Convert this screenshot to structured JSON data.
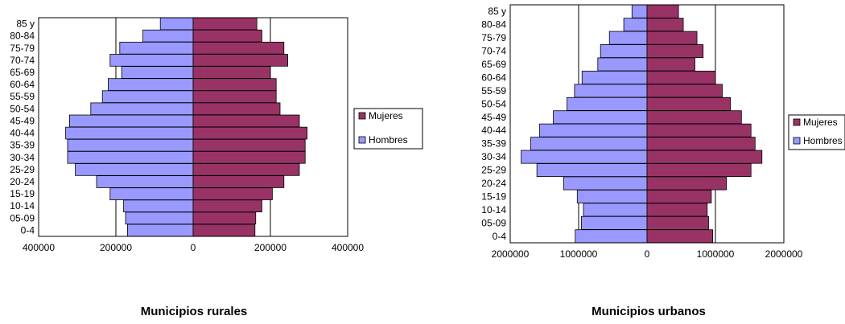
{
  "colors": {
    "mujeres": "#993366",
    "hombres": "#9999FF",
    "frame": "#000000"
  },
  "chart_data": [
    {
      "type": "bar",
      "orientation": "horizontal-pyramid",
      "title": "Municipios rurales",
      "categories": [
        "0-4",
        "05-09",
        "10-14",
        "15-19",
        "20-24",
        "25-29",
        "30-34",
        "35-39",
        "40-44",
        "45-49",
        "50-54",
        "55-59",
        "60-64",
        "65-69",
        "70-74",
        "75-79",
        "80-84",
        "85 y"
      ],
      "series": [
        {
          "name": "Hombres",
          "side": "left",
          "values": [
            170000,
            175000,
            180000,
            215000,
            250000,
            305000,
            325000,
            325000,
            330000,
            320000,
            265000,
            235000,
            220000,
            185000,
            215000,
            190000,
            130000,
            85000
          ]
        },
        {
          "name": "Mujeres",
          "side": "right",
          "values": [
            160000,
            162000,
            178000,
            205000,
            235000,
            275000,
            290000,
            290000,
            295000,
            275000,
            225000,
            215000,
            215000,
            200000,
            245000,
            235000,
            178000,
            165000
          ]
        }
      ],
      "xlim": [
        -400000,
        400000
      ],
      "xticks": [
        "400000",
        "200000",
        "0",
        "200000",
        "400000"
      ],
      "gridlines": [
        -200000,
        0,
        200000
      ],
      "legend": [
        "Mujeres",
        "Hombres"
      ],
      "legend_position": "right"
    },
    {
      "type": "bar",
      "orientation": "horizontal-pyramid",
      "title": "Municipios urbanos",
      "categories": [
        "0-4",
        "05-09",
        "10-14",
        "15-19",
        "20-24",
        "25-29",
        "30-34",
        "35-39",
        "40-44",
        "45-49",
        "50-54",
        "55-59",
        "60-64",
        "65-69",
        "70-74",
        "75-79",
        "80-84",
        "85 y"
      ],
      "series": [
        {
          "name": "Hombres",
          "side": "left",
          "values": [
            1050000,
            960000,
            930000,
            1020000,
            1220000,
            1610000,
            1840000,
            1700000,
            1570000,
            1370000,
            1170000,
            1060000,
            950000,
            720000,
            680000,
            550000,
            340000,
            220000
          ]
        },
        {
          "name": "Mujeres",
          "side": "right",
          "values": [
            960000,
            900000,
            880000,
            940000,
            1160000,
            1520000,
            1680000,
            1580000,
            1520000,
            1380000,
            1220000,
            1100000,
            1000000,
            700000,
            820000,
            730000,
            530000,
            460000
          ]
        }
      ],
      "xlim": [
        -2000000,
        2000000
      ],
      "xticks": [
        "2000000",
        "1000000",
        "0",
        "1000000",
        "2000000"
      ],
      "gridlines": [
        -1000000,
        0,
        1000000
      ],
      "legend": [
        "Mujeres",
        "Hombres"
      ],
      "legend_position": "right"
    }
  ]
}
